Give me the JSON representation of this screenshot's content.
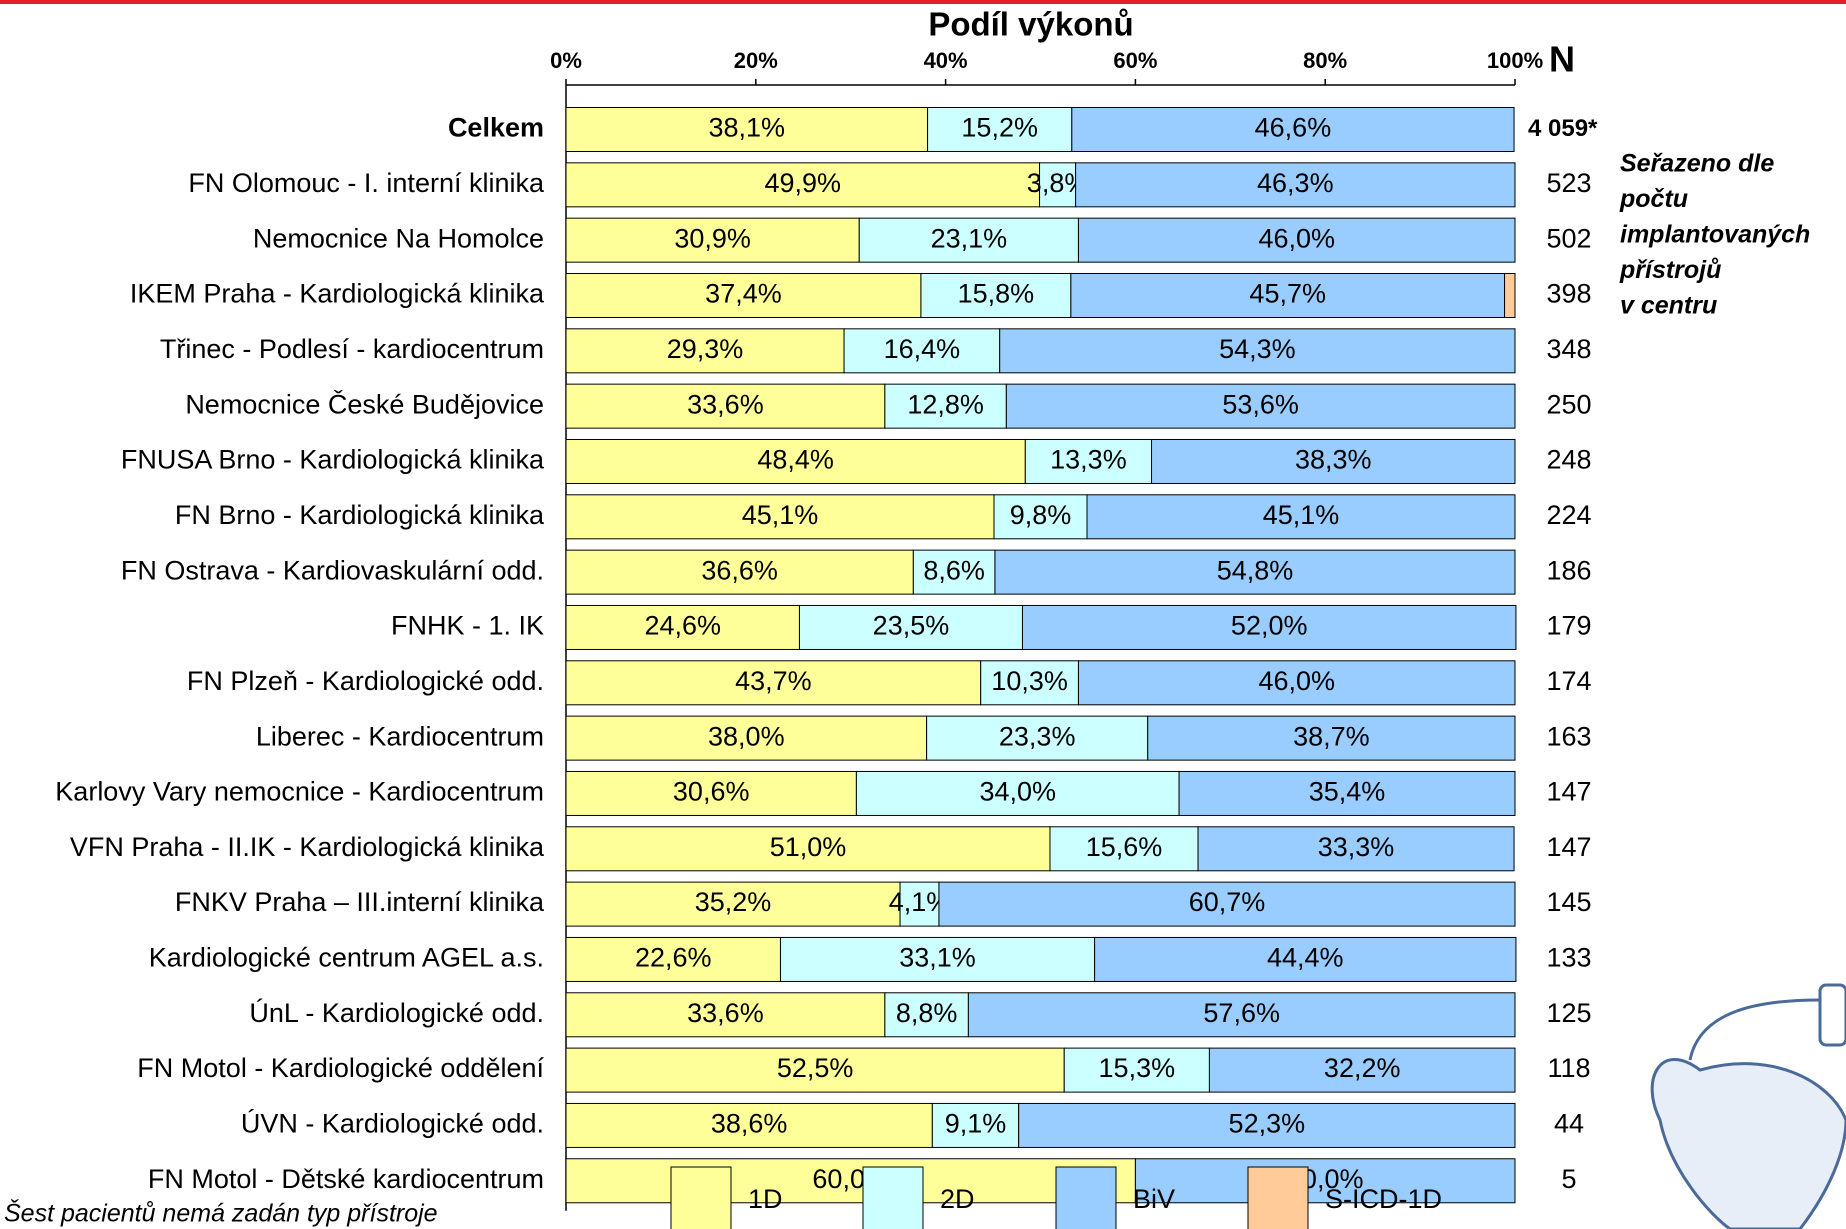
{
  "chart_data": {
    "type": "stacked-bar-horizontal",
    "title": "Podíl výkonů",
    "xlim": [
      0,
      100
    ],
    "xticks": [
      {
        "value": 0,
        "label": "0%"
      },
      {
        "value": 20,
        "label": "20%"
      },
      {
        "value": 40,
        "label": "40%"
      },
      {
        "value": 60,
        "label": "60%"
      },
      {
        "value": 80,
        "label": "80%"
      },
      {
        "value": 100,
        "label": "100%"
      }
    ],
    "categories": [
      "Celkem",
      "FN Olomouc - I. interní klinika",
      "Nemocnice Na Homolce",
      "IKEM Praha - Kardiologická klinika",
      "Třinec - Podlesí - kardiocentrum",
      "Nemocnice České Budějovice",
      "FNUSA Brno - Kardiologická klinika",
      "FN Brno - Kardiologická klinika",
      "FN Ostrava - Kardiovaskulární odd.",
      "FNHK - 1. IK",
      "FN Plzeň - Kardiologické odd.",
      "Liberec - Kardiocentrum",
      "Karlovy Vary nemocnice - Kardiocentrum",
      "VFN Praha - II.IK - Kardiologická klinika",
      "FNKV Praha – III.interní klinika",
      "Kardiologické centrum AGEL a.s.",
      "ÚnL - Kardiologické odd.",
      "FN Motol - Kardiologické oddělení",
      "ÚVN - Kardiologické odd.",
      "FN Motol - Dětské kardiocentrum"
    ],
    "series": [
      {
        "name": "1D",
        "color": "#ffff99",
        "values": [
          38.1,
          49.9,
          30.9,
          37.4,
          29.3,
          33.6,
          48.4,
          45.1,
          36.6,
          24.6,
          43.7,
          38.0,
          30.6,
          51.0,
          35.2,
          22.6,
          33.6,
          52.5,
          38.6,
          60.0
        ],
        "value_labels": [
          "38,1%",
          "49,9%",
          "30,9%",
          "37,4%",
          "29,3%",
          "33,6%",
          "48,4%",
          "45,1%",
          "36,6%",
          "24,6%",
          "43,7%",
          "38,0%",
          "30,6%",
          "51,0%",
          "35,2%",
          "22,6%",
          "33,6%",
          "52,5%",
          "38,6%",
          "60,0%"
        ]
      },
      {
        "name": "2D",
        "color": "#ccffff",
        "values": [
          15.2,
          3.8,
          23.1,
          15.8,
          16.4,
          12.8,
          13.3,
          9.8,
          8.6,
          23.5,
          10.3,
          23.3,
          34.0,
          15.6,
          4.1,
          33.1,
          8.8,
          15.3,
          9.1,
          null
        ],
        "value_labels": [
          "15,2%",
          "3,8%",
          "23,1%",
          "15,8%",
          "16,4%",
          "12,8%",
          "13,3%",
          "9,8%",
          "8,6%",
          "23,5%",
          "10,3%",
          "23,3%",
          "34,0%",
          "15,6%",
          "4,1%",
          "33,1%",
          "8,8%",
          "15,3%",
          "9,1%",
          null
        ]
      },
      {
        "name": "BiV",
        "color": "#99ccff",
        "values": [
          46.6,
          46.3,
          46.0,
          45.7,
          54.3,
          53.6,
          38.3,
          45.1,
          54.8,
          52.0,
          46.0,
          38.7,
          35.4,
          33.3,
          60.7,
          44.4,
          57.6,
          32.2,
          52.3,
          40.0
        ],
        "value_labels": [
          "46,6%",
          "46,3%",
          "46,0%",
          "45,7%",
          "54,3%",
          "53,6%",
          "38,3%",
          "45,1%",
          "54,8%",
          "52,0%",
          "46,0%",
          "38,7%",
          "35,4%",
          "33,3%",
          "60,7%",
          "44,4%",
          "57,6%",
          "32,2%",
          "52,3%",
          "40,0%"
        ]
      },
      {
        "name": "S-ICD-1D",
        "color": "#ffcc99",
        "values": [
          null,
          null,
          null,
          1.1,
          null,
          null,
          null,
          null,
          null,
          null,
          null,
          null,
          null,
          null,
          null,
          null,
          null,
          null,
          null,
          null
        ]
      }
    ],
    "n_header": "N",
    "n_values": [
      "4 059*",
      523,
      502,
      398,
      348,
      250,
      248,
      224,
      186,
      179,
      174,
      163,
      147,
      147,
      145,
      133,
      125,
      118,
      44,
      5
    ],
    "note": [
      "Seřazeno dle",
      "počtu",
      "implantovaných",
      "přístrojů",
      "v centru"
    ],
    "footnote": "Šest pacientů nemá zadán typ přístroje"
  }
}
